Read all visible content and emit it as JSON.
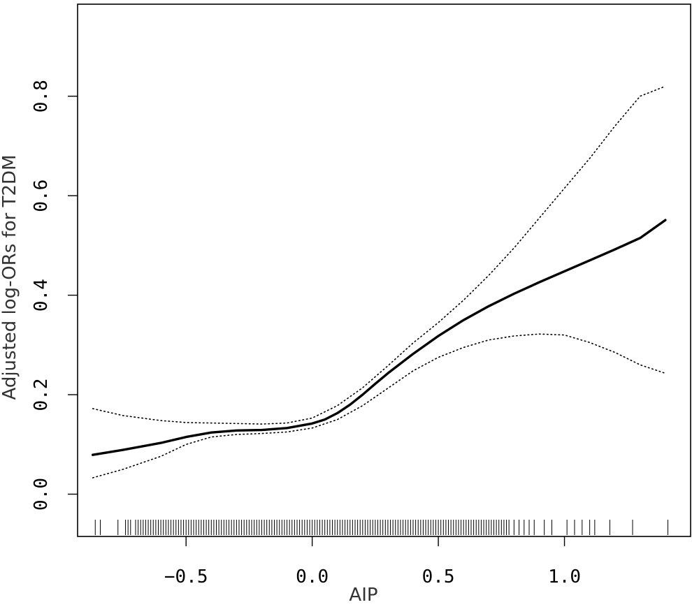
{
  "chart_data": {
    "type": "line",
    "title": "",
    "xlabel": "AIP",
    "ylabel": "Adjusted log-ORs for T2DM",
    "xlim": [
      -0.93,
      1.5
    ],
    "ylim": [
      -0.085,
      0.985
    ],
    "x_ticks": [
      -0.5,
      0.0,
      0.5,
      1.0
    ],
    "x_tick_labels": [
      "−0.5",
      "0.0",
      "0.5",
      "1.0"
    ],
    "y_ticks": [
      0.0,
      0.2,
      0.4,
      0.6,
      0.8
    ],
    "y_tick_labels": [
      "0.0",
      "0.2",
      "0.4",
      "0.6",
      "0.8"
    ],
    "grid": false,
    "legend": "none",
    "series": [
      {
        "style": "solid",
        "x": [
          -0.87,
          -0.75,
          -0.6,
          -0.5,
          -0.4,
          -0.3,
          -0.2,
          -0.1,
          0.0,
          0.05,
          0.1,
          0.15,
          0.2,
          0.25,
          0.3,
          0.4,
          0.5,
          0.6,
          0.7,
          0.8,
          0.9,
          1.0,
          1.1,
          1.2,
          1.3,
          1.4
        ],
        "y": [
          0.079,
          0.089,
          0.103,
          0.115,
          0.124,
          0.128,
          0.129,
          0.133,
          0.142,
          0.15,
          0.163,
          0.18,
          0.2,
          0.222,
          0.243,
          0.282,
          0.318,
          0.35,
          0.378,
          0.403,
          0.426,
          0.448,
          0.47,
          0.492,
          0.515,
          0.551
        ]
      },
      {
        "style": "dotted",
        "x": [
          -0.87,
          -0.75,
          -0.6,
          -0.5,
          -0.4,
          -0.3,
          -0.2,
          -0.1,
          0.0,
          0.1,
          0.2,
          0.3,
          0.4,
          0.5,
          0.6,
          0.7,
          0.8,
          0.9,
          1.0,
          1.1,
          1.2,
          1.3,
          1.4
        ],
        "y": [
          0.172,
          0.158,
          0.148,
          0.144,
          0.143,
          0.142,
          0.141,
          0.143,
          0.153,
          0.178,
          0.214,
          0.258,
          0.304,
          0.345,
          0.39,
          0.44,
          0.495,
          0.555,
          0.615,
          0.675,
          0.74,
          0.8,
          0.82
        ]
      },
      {
        "style": "dotted",
        "x": [
          -0.87,
          -0.75,
          -0.6,
          -0.5,
          -0.4,
          -0.3,
          -0.2,
          -0.1,
          0.0,
          0.1,
          0.2,
          0.3,
          0.4,
          0.5,
          0.6,
          0.7,
          0.8,
          0.9,
          1.0,
          1.1,
          1.2,
          1.3,
          1.4
        ],
        "y": [
          0.033,
          0.05,
          0.076,
          0.1,
          0.115,
          0.12,
          0.122,
          0.125,
          0.133,
          0.15,
          0.178,
          0.213,
          0.248,
          0.275,
          0.295,
          0.31,
          0.318,
          0.322,
          0.32,
          0.305,
          0.285,
          0.26,
          0.243
        ]
      }
    ],
    "rug_x": [
      -0.86,
      -0.84,
      -0.77,
      -0.74,
      -0.73,
      -0.72,
      -0.7,
      -0.69,
      -0.68,
      -0.67,
      -0.66,
      -0.65,
      -0.64,
      -0.63,
      -0.62,
      -0.61,
      -0.6,
      -0.59,
      -0.58,
      -0.57,
      -0.56,
      -0.55,
      -0.54,
      -0.53,
      -0.52,
      -0.51,
      -0.5,
      -0.49,
      -0.48,
      -0.47,
      -0.46,
      -0.45,
      -0.44,
      -0.43,
      -0.42,
      -0.41,
      -0.4,
      -0.39,
      -0.38,
      -0.37,
      -0.36,
      -0.35,
      -0.34,
      -0.33,
      -0.32,
      -0.31,
      -0.3,
      -0.29,
      -0.28,
      -0.27,
      -0.26,
      -0.25,
      -0.24,
      -0.23,
      -0.22,
      -0.21,
      -0.2,
      -0.19,
      -0.18,
      -0.17,
      -0.16,
      -0.15,
      -0.14,
      -0.13,
      -0.12,
      -0.11,
      -0.1,
      -0.09,
      -0.08,
      -0.07,
      -0.06,
      -0.05,
      -0.04,
      -0.03,
      -0.02,
      -0.01,
      0.0,
      0.01,
      0.02,
      0.03,
      0.04,
      0.05,
      0.06,
      0.07,
      0.08,
      0.09,
      0.1,
      0.11,
      0.12,
      0.13,
      0.14,
      0.15,
      0.16,
      0.17,
      0.18,
      0.19,
      0.2,
      0.21,
      0.22,
      0.23,
      0.24,
      0.25,
      0.26,
      0.27,
      0.28,
      0.29,
      0.3,
      0.31,
      0.32,
      0.33,
      0.34,
      0.35,
      0.36,
      0.37,
      0.38,
      0.39,
      0.4,
      0.41,
      0.42,
      0.43,
      0.44,
      0.45,
      0.46,
      0.47,
      0.48,
      0.49,
      0.5,
      0.51,
      0.52,
      0.53,
      0.54,
      0.55,
      0.56,
      0.57,
      0.58,
      0.59,
      0.6,
      0.61,
      0.62,
      0.63,
      0.64,
      0.65,
      0.66,
      0.67,
      0.68,
      0.69,
      0.7,
      0.71,
      0.72,
      0.73,
      0.74,
      0.75,
      0.76,
      0.77,
      0.78,
      0.8,
      0.82,
      0.84,
      0.86,
      0.88,
      0.92,
      0.95,
      1.01,
      1.04,
      1.07,
      1.1,
      1.12,
      1.18,
      1.27,
      1.41
    ]
  }
}
